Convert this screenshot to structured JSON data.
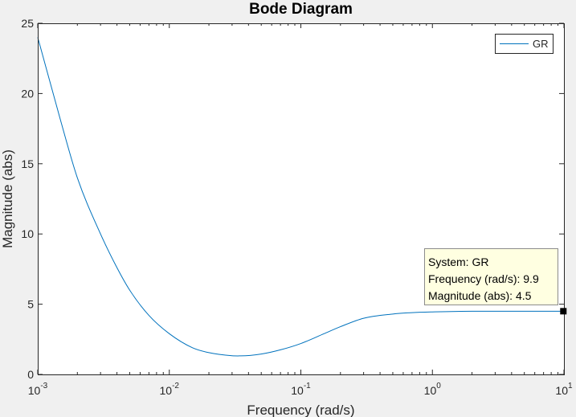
{
  "chart_data": {
    "type": "line",
    "title": "Bode Diagram",
    "xlabel": "Frequency  (rad/s)",
    "ylabel": "Magnitude (abs)",
    "xscale": "log",
    "xlim": [
      0.001,
      10
    ],
    "ylim": [
      0,
      25
    ],
    "x_ticks": [
      {
        "base": "10",
        "exp": "-3"
      },
      {
        "base": "10",
        "exp": "-2"
      },
      {
        "base": "10",
        "exp": "-1"
      },
      {
        "base": "10",
        "exp": "0"
      },
      {
        "base": "10",
        "exp": "1"
      }
    ],
    "y_ticks": [
      "0",
      "5",
      "10",
      "15",
      "20",
      "25"
    ],
    "grid": false,
    "legend_position": "top-right",
    "series": [
      {
        "name": "GR",
        "color": "#0072bd",
        "x": [
          0.001,
          0.0015,
          0.002,
          0.003,
          0.004,
          0.005,
          0.007,
          0.01,
          0.015,
          0.02,
          0.03,
          0.035,
          0.05,
          0.07,
          0.1,
          0.15,
          0.2,
          0.3,
          0.5,
          0.7,
          1,
          2,
          5,
          9.9
        ],
        "y": [
          24.0,
          18.0,
          14.0,
          10.0,
          7.6,
          6.0,
          4.2,
          2.9,
          1.9,
          1.55,
          1.33,
          1.32,
          1.45,
          1.75,
          2.2,
          2.9,
          3.4,
          4.0,
          4.3,
          4.4,
          4.45,
          4.5,
          4.5,
          4.5
        ]
      }
    ]
  },
  "datatip": {
    "x": 9.9,
    "y": 4.5,
    "lines": [
      "System: GR",
      "Frequency (rad/s): 9.9",
      "Magnitude (abs): 4.5"
    ]
  }
}
